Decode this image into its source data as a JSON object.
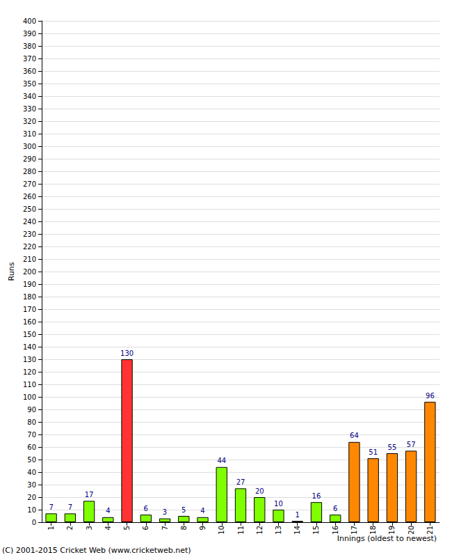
{
  "chart_data": {
    "type": "bar",
    "x_label": "Innings (oldest to newest)",
    "y_label": "Runs",
    "annotations": [
      "(C) 2001-2015 Cricket Web (www.cricketweb.net)"
    ],
    "categories": [
      "1",
      "2",
      "3",
      "4",
      "5",
      "6",
      "7",
      "8",
      "9",
      "10",
      "11",
      "12",
      "13",
      "14",
      "15",
      "16",
      "17",
      "18",
      "19",
      "20",
      "21"
    ],
    "values": [
      7,
      7,
      17,
      4,
      130,
      6,
      3,
      5,
      4,
      44,
      27,
      20,
      10,
      1,
      16,
      6,
      64,
      51,
      55,
      57,
      96
    ],
    "colors": [
      "#80ff00",
      "#80ff00",
      "#80ff00",
      "#80ff00",
      "#ff3333",
      "#80ff00",
      "#80ff00",
      "#80ff00",
      "#80ff00",
      "#80ff00",
      "#80ff00",
      "#80ff00",
      "#80ff00",
      "#80ff00",
      "#80ff00",
      "#80ff00",
      "#ff8800",
      "#ff8800",
      "#ff8800",
      "#ff8800",
      "#ff8800"
    ],
    "ylim": [
      0,
      400
    ],
    "yticks": [
      0,
      10,
      20,
      30,
      40,
      50,
      60,
      70,
      80,
      90,
      100,
      110,
      120,
      130,
      140,
      150,
      160,
      170,
      180,
      190,
      200,
      210,
      220,
      230,
      240,
      250,
      260,
      270,
      280,
      290,
      300,
      310,
      320,
      330,
      340,
      350,
      360,
      370,
      380,
      390,
      400
    ],
    "grid": true,
    "data_labels": true
  }
}
